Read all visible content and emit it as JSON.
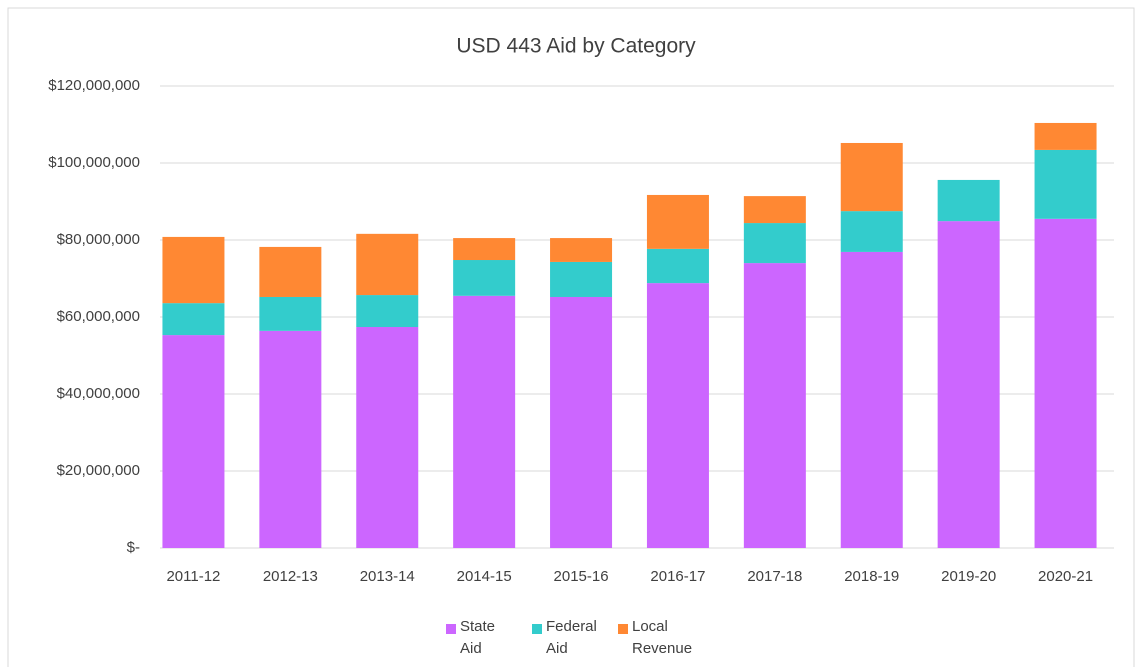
{
  "chart_data": {
    "type": "stacked_bar",
    "title": "USD 443 Aid by Category",
    "categories": [
      "2011-12",
      "2012-13",
      "2013-14",
      "2014-15",
      "2015-16",
      "2016-17",
      "2017-18",
      "2018-19",
      "2019-20",
      "2020-21"
    ],
    "series": [
      {
        "name": "State Aid",
        "color": "#cc66ff",
        "values": [
          55300000,
          56400000,
          57400000,
          65500000,
          65200000,
          68800000,
          74000000,
          76900000,
          84900000,
          85500000
        ]
      },
      {
        "name": "Federal Aid",
        "color": "#33cccc",
        "values": [
          8300000,
          8800000,
          8300000,
          9300000,
          9100000,
          8900000,
          10400000,
          10600000,
          10700000,
          17900000
        ]
      },
      {
        "name": "Local Revenue",
        "color": "#ff8833",
        "values": [
          17200000,
          13000000,
          15900000,
          5700000,
          6200000,
          14000000,
          7000000,
          17700000,
          0,
          7000000
        ]
      }
    ],
    "ylim": [
      0,
      120000000
    ],
    "yticks": [
      {
        "value": 0,
        "label": "$-"
      },
      {
        "value": 20000000,
        "label": "$20,000,000"
      },
      {
        "value": 40000000,
        "label": "$40,000,000"
      },
      {
        "value": 60000000,
        "label": "$60,000,000"
      },
      {
        "value": 80000000,
        "label": "$80,000,000"
      },
      {
        "value": 100000000,
        "label": "$100,000,000"
      },
      {
        "value": 120000000,
        "label": "$120,000,000"
      }
    ],
    "grid": true,
    "legend": "bottom"
  }
}
